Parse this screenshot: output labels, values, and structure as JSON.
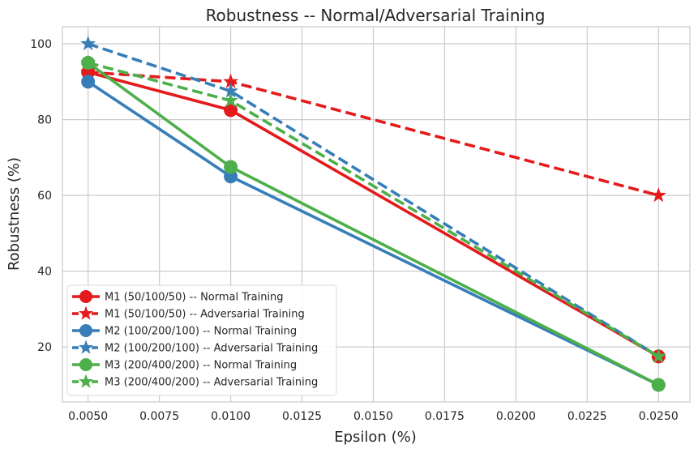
{
  "chart_data": {
    "type": "line",
    "title": "Robustness -- Normal/Adversarial Training",
    "xlabel": "Epsilon (%)",
    "ylabel": "Robustness (%)",
    "x": [
      0.005,
      0.01,
      0.025
    ],
    "xlim": [
      0.0041,
      0.0261
    ],
    "ylim": [
      5.5,
      104.5
    ],
    "xticks": [
      0.005,
      0.0075,
      0.01,
      0.0125,
      0.015,
      0.0175,
      0.02,
      0.0225,
      0.025
    ],
    "xtick_labels": [
      "0.0050",
      "0.0075",
      "0.0100",
      "0.0125",
      "0.0150",
      "0.0175",
      "0.0200",
      "0.0225",
      "0.0250"
    ],
    "yticks": [
      20,
      40,
      60,
      80,
      100
    ],
    "ytick_labels": [
      "20",
      "40",
      "60",
      "80",
      "100"
    ],
    "grid": true,
    "legend_position": "lower-left",
    "series": [
      {
        "name": "M1 (50/100/50) -- Normal Training",
        "values": [
          92.5,
          82.5,
          17.5
        ],
        "color": "#e41a1c",
        "dash": false,
        "marker": "circle"
      },
      {
        "name": "M1 (50/100/50) -- Adversarial Training",
        "values": [
          92.5,
          90,
          60
        ],
        "color": "#e41a1c",
        "dash": true,
        "marker": "star"
      },
      {
        "name": "M2 (100/200/100) -- Normal Training",
        "values": [
          90,
          65,
          10
        ],
        "color": "#377eb8",
        "dash": false,
        "marker": "circle"
      },
      {
        "name": "M2 (100/200/100) -- Adversarial Training",
        "values": [
          100,
          87.5,
          17.5
        ],
        "color": "#377eb8",
        "dash": true,
        "marker": "star"
      },
      {
        "name": "M3 (200/400/200) -- Normal Training",
        "values": [
          95,
          67.5,
          10
        ],
        "color": "#4daf4a",
        "dash": false,
        "marker": "circle"
      },
      {
        "name": "M3 (200/400/200) -- Adversarial Training",
        "values": [
          95,
          85,
          17.5
        ],
        "color": "#4daf4a",
        "dash": true,
        "marker": "star"
      }
    ]
  }
}
